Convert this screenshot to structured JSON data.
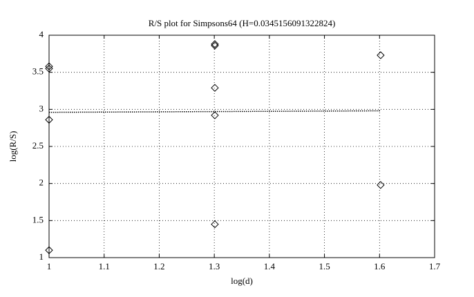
{
  "chart_data": {
    "type": "scatter",
    "title": "R/S plot for Simpsons64 (H=0.0345156091322824)",
    "x_label": "log(d)",
    "y_label": "log(R/S)",
    "series": [
      {
        "x": [
          1,
          1,
          1,
          1,
          1.301,
          1.301,
          1.301,
          1.301,
          1.301,
          1.602,
          1.602
        ],
        "values": [
          3.58,
          3.55,
          2.86,
          1.1,
          3.88,
          3.86,
          3.29,
          2.92,
          1.45,
          3.73,
          1.98
        ],
        "color": "#000000",
        "marker": "diamond"
      },
      {
        "type": "line",
        "x": [
          1,
          1.602
        ],
        "values": [
          2.96,
          2.98
        ],
        "color": "#000000",
        "dash": "dotted"
      }
    ],
    "xlim": [
      1,
      1.7
    ],
    "ylim": [
      1,
      4
    ],
    "xticks": [
      1,
      1.1,
      1.2,
      1.3,
      1.4,
      1.5,
      1.6,
      1.7
    ],
    "yticks": [
      1,
      1.5,
      2,
      2.5,
      3,
      3.5,
      4
    ],
    "grid": true
  }
}
